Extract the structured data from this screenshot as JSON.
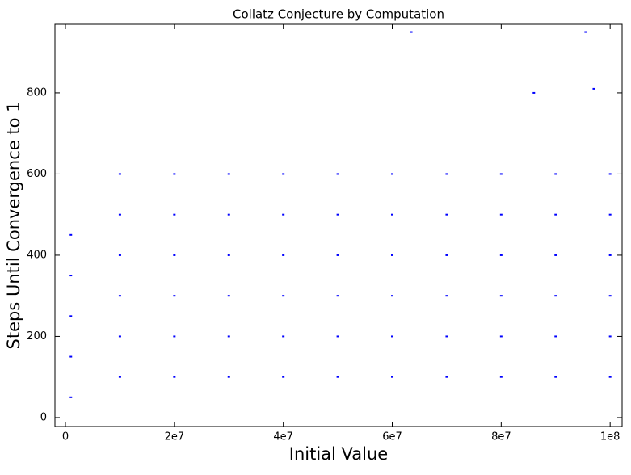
{
  "chart_data": {
    "type": "scatter",
    "title": "Collatz Conjecture by Computation",
    "x_label": "Initial Value",
    "y_label": "Steps Until Convergence to 1",
    "color": "#0000ff",
    "x": [
      1000000,
      1000000,
      1000000,
      1000000,
      1000000,
      10000000,
      10000000,
      10000000,
      10000000,
      10000000,
      10000000,
      20000000,
      20000000,
      20000000,
      20000000,
      20000000,
      20000000,
      30000000,
      30000000,
      30000000,
      30000000,
      30000000,
      30000000,
      40000000,
      40000000,
      40000000,
      40000000,
      40000000,
      40000000,
      50000000,
      50000000,
      50000000,
      50000000,
      50000000,
      50000000,
      60000000,
      60000000,
      60000000,
      60000000,
      60000000,
      60000000,
      70000000,
      70000000,
      70000000,
      70000000,
      70000000,
      70000000,
      80000000,
      80000000,
      80000000,
      80000000,
      80000000,
      80000000,
      90000000,
      90000000,
      90000000,
      90000000,
      90000000,
      90000000,
      100000000,
      100000000,
      100000000,
      100000000,
      100000000,
      100000000,
      63500000,
      95500000,
      97000000,
      86000000
    ],
    "values": [
      50,
      150,
      250,
      350,
      450,
      100,
      200,
      300,
      400,
      500,
      600,
      100,
      200,
      300,
      400,
      500,
      600,
      100,
      200,
      300,
      400,
      500,
      600,
      100,
      200,
      300,
      400,
      500,
      600,
      100,
      200,
      300,
      400,
      500,
      600,
      100,
      200,
      300,
      400,
      500,
      600,
      100,
      200,
      300,
      400,
      500,
      600,
      100,
      200,
      300,
      400,
      500,
      600,
      100,
      200,
      300,
      400,
      500,
      600,
      100,
      200,
      300,
      400,
      500,
      600,
      950,
      950,
      810,
      800
    ],
    "xlim": [
      -1930000,
      102200000
    ],
    "ylim": [
      -22,
      969
    ],
    "xticks": [
      0,
      {
        "value": 20000000,
        "label": "2e7"
      },
      {
        "value": 40000000,
        "label": "4e7"
      },
      {
        "value": 60000000,
        "label": "6e7"
      },
      {
        "value": 80000000,
        "label": "8e7"
      },
      {
        "value": 100000000,
        "label": "1e8"
      }
    ],
    "yticks": [
      0,
      200,
      400,
      600,
      800
    ]
  }
}
